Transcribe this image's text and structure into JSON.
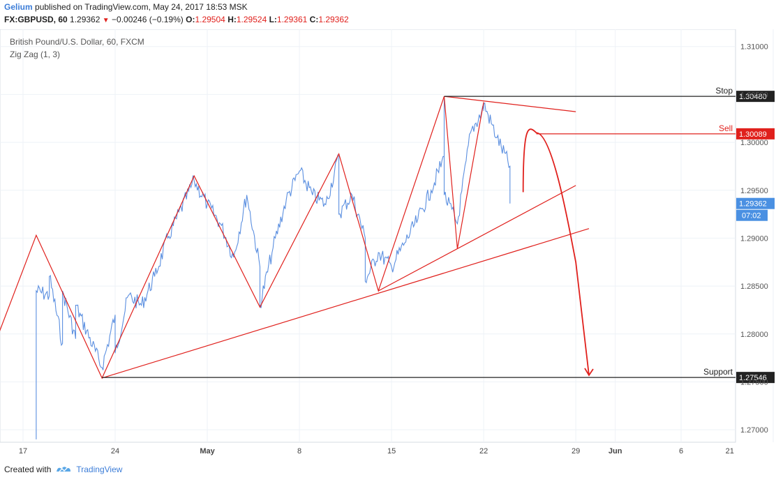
{
  "header": {
    "author": "Gelium",
    "published_text": "published on TradingView.com, May 24, 2017 18:53 MSK",
    "symbol": "FX:GBPUSD, 60",
    "last": "1.29362",
    "change": "−0.00246 (−0.19%)",
    "o_label": "O:",
    "o_value": "1.29504",
    "h_label": "H:",
    "h_value": "1.29524",
    "l_label": "L:",
    "l_value": "1.29361",
    "c_label": "C:",
    "c_value": "1.29362"
  },
  "legend": {
    "instrument": "British Pound/U.S. Dollar, 60, FXCM",
    "indicator": "Zig Zag (1, 3)"
  },
  "footer": {
    "created_with": "Created with",
    "brand": "TradingView"
  },
  "colors": {
    "price": "#5b8fe0",
    "drawing": "#e0201c",
    "level": "#222222",
    "grid": "#eef2f7",
    "last_badge": "#4a90e2"
  },
  "chart_data": {
    "type": "line",
    "x_tick_labels": [
      "17",
      "24",
      "May",
      "8",
      "15",
      "22",
      "29",
      "Jun",
      "6",
      "21"
    ],
    "y_tick_labels": [
      "1.27000",
      "1.27500",
      "1.28000",
      "1.28500",
      "1.29000",
      "1.29500",
      "1.30000",
      "1.30500",
      "1.31000"
    ],
    "ylim": [
      1.2687,
      1.3118
    ],
    "grid": true,
    "price_series": {
      "name": "FX:GBPUSD",
      "points": [
        [
          "Apr 18",
          1.269
        ],
        [
          "Apr 18",
          1.2845
        ],
        [
          "Apr 19",
          1.284
        ],
        [
          "Apr 19",
          1.286
        ],
        [
          "Apr 20",
          1.279
        ],
        [
          "Apr 20",
          1.2845
        ],
        [
          "Apr 21",
          1.2795
        ],
        [
          "Apr 21",
          1.283
        ],
        [
          "Apr 23",
          1.2765
        ],
        [
          "Apr 24",
          1.282
        ],
        [
          "Apr 24",
          1.278
        ],
        [
          "Apr 25",
          1.284
        ],
        [
          "Apr 26",
          1.283
        ],
        [
          "Apr 27",
          1.286
        ],
        [
          "Apr 28",
          1.29
        ],
        [
          "Apr 30",
          1.296
        ],
        [
          "May 1",
          1.2935
        ],
        [
          "May 2",
          1.2915
        ],
        [
          "May 3",
          1.288
        ],
        [
          "May 4",
          1.2945
        ],
        [
          "May 5",
          1.287
        ],
        [
          "May 5",
          1.283
        ],
        [
          "May 6",
          1.289
        ],
        [
          "May 7",
          1.294
        ],
        [
          "May 8",
          1.297
        ],
        [
          "May 9",
          1.2945
        ],
        [
          "May 10",
          1.2935
        ],
        [
          "May 11",
          1.2985
        ],
        [
          "May 11",
          1.2925
        ],
        [
          "May 12",
          1.2945
        ],
        [
          "May 13",
          1.29
        ],
        [
          "May 13",
          1.2855
        ],
        [
          "May 14",
          1.2885
        ],
        [
          "May 15",
          1.287
        ],
        [
          "May 16",
          1.2895
        ],
        [
          "May 17",
          1.292
        ],
        [
          "May 18",
          1.295
        ],
        [
          "May 19",
          1.2985
        ],
        [
          "May 19",
          1.3045
        ],
        [
          "May 19",
          1.2945
        ],
        [
          "May 20",
          1.2915
        ],
        [
          "May 21",
          1.301
        ],
        [
          "May 22",
          1.3035
        ],
        [
          "May 22",
          1.304
        ],
        [
          "May 23",
          1.3005
        ],
        [
          "May 24",
          1.2975
        ],
        [
          "May 24",
          1.295
        ],
        [
          "May 24",
          1.29362
        ]
      ]
    },
    "zigzag": [
      [
        "Apr 12",
        1.2687
      ],
      [
        "Apr 18",
        1.2903
      ],
      [
        "Apr 23",
        1.2754
      ],
      [
        "Apr 30",
        1.2965
      ],
      [
        "May 5",
        1.2828
      ],
      [
        "May 11",
        1.2988
      ],
      [
        "May 14",
        1.2845
      ],
      [
        "May 19",
        1.3048
      ],
      [
        "May 20",
        1.2889
      ],
      [
        "May 22",
        1.3042
      ]
    ],
    "drawings": {
      "resistance_line": [
        [
          "May 19",
          1.3048
        ],
        [
          "May 29",
          1.3032
        ]
      ],
      "support_trendline_1": [
        [
          "May 14",
          1.2845
        ],
        [
          "May 29",
          1.2955
        ]
      ],
      "support_trendline_2": [
        [
          "Apr 23",
          1.2754
        ],
        [
          "May 30",
          1.291
        ]
      ],
      "projection": [
        [
          "May 25",
          1.2948
        ],
        [
          "May 26",
          1.301
        ],
        [
          "May 29",
          1.2875
        ],
        [
          "May 30",
          1.2754
        ]
      ]
    },
    "levels": [
      {
        "name": "Stop",
        "value": 1.3048,
        "label": "1.30480"
      },
      {
        "name": "Sell",
        "value": 1.30089,
        "label": "1.30089"
      },
      {
        "name": "Support",
        "value": 1.27546,
        "label": "1.27546"
      }
    ],
    "last_price": {
      "value": "1.29362",
      "countdown": "07:02"
    }
  }
}
